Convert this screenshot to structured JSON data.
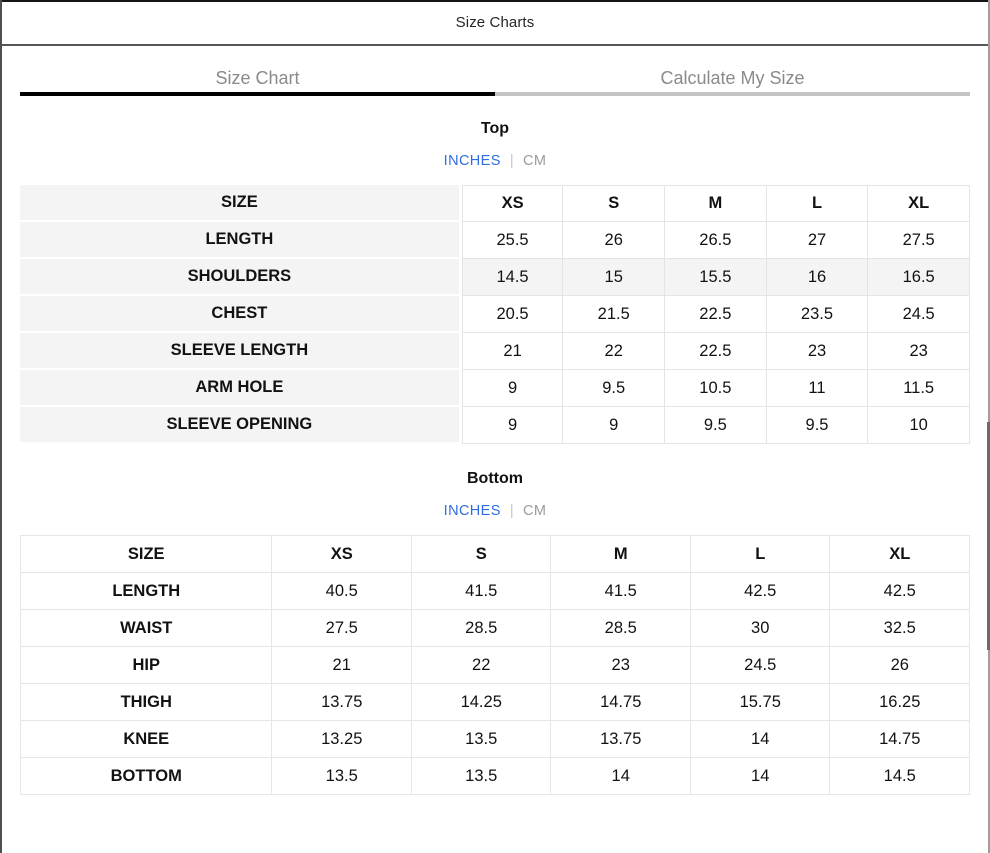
{
  "modal": {
    "title": "Size Charts",
    "close_label": "×"
  },
  "tabs": {
    "size_chart": "Size Chart",
    "calculate": "Calculate My Size",
    "active": "Size Chart"
  },
  "sections": {
    "top": {
      "title": "Top",
      "units": {
        "inches": "INCHES",
        "cm": "CM",
        "divider": "|",
        "selected": "INCHES"
      },
      "table": {
        "header": [
          "SIZE",
          "XS",
          "S",
          "M",
          "L",
          "XL"
        ],
        "rows": [
          [
            "LENGTH",
            "25.5",
            "26",
            "26.5",
            "27",
            "27.5"
          ],
          [
            "SHOULDERS",
            "14.5",
            "15",
            "15.5",
            "16",
            "16.5"
          ],
          [
            "CHEST",
            "20.5",
            "21.5",
            "22.5",
            "23.5",
            "24.5"
          ],
          [
            "SLEEVE LENGTH",
            "21",
            "22",
            "22.5",
            "23",
            "23"
          ],
          [
            "ARM HOLE",
            "9",
            "9.5",
            "10.5",
            "11",
            "11.5"
          ],
          [
            "SLEEVE OPENING",
            "9",
            "9",
            "9.5",
            "9.5",
            "10"
          ]
        ],
        "highlighted_row_index": 1
      }
    },
    "bottom": {
      "title": "Bottom",
      "units": {
        "inches": "INCHES",
        "cm": "CM",
        "divider": "|",
        "selected": "INCHES"
      },
      "table": {
        "header": [
          "SIZE",
          "XS",
          "S",
          "M",
          "L",
          "XL"
        ],
        "rows": [
          [
            "LENGTH",
            "40.5",
            "41.5",
            "41.5",
            "42.5",
            "42.5"
          ],
          [
            "WAIST",
            "27.5",
            "28.5",
            "28.5",
            "30",
            "32.5"
          ],
          [
            "HIP",
            "21",
            "22",
            "23",
            "24.5",
            "26"
          ],
          [
            "THIGH",
            "13.75",
            "14.25",
            "14.75",
            "15.75",
            "16.25"
          ],
          [
            "KNEE",
            "13.25",
            "13.5",
            "13.75",
            "14",
            "14.75"
          ],
          [
            "BOTTOM",
            "13.5",
            "13.5",
            "14",
            "14",
            "14.5"
          ]
        ]
      }
    }
  },
  "colors": {
    "accent_blue": "#2f6ce0",
    "unit_muted": "#9b9b9b",
    "tab_text": "#8a8a8a",
    "active_tab_underline": "#000000",
    "inactive_tab_underline": "#c4c4c4",
    "row_shade": "#f4f4f4",
    "table_border": "#e4e4e4"
  }
}
